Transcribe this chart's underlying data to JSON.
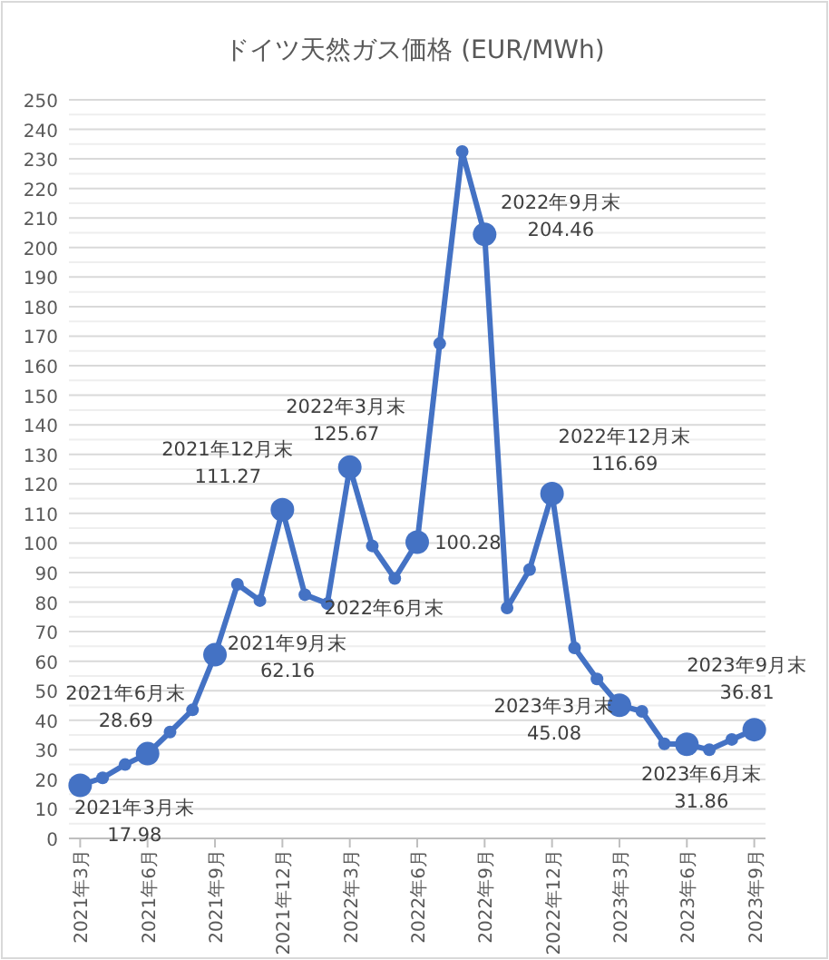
{
  "chart_data": {
    "type": "line",
    "title": "ドイツ天然ガス価格 (EUR/MWh)",
    "categories": [
      "2021年3月",
      null,
      null,
      "2021年6月",
      null,
      null,
      "2021年9月",
      null,
      null,
      "2021年12月",
      null,
      null,
      "2022年3月",
      null,
      null,
      "2022年6月",
      null,
      null,
      "2022年9月",
      null,
      null,
      "2022年12月",
      null,
      null,
      "2023年3月",
      null,
      null,
      "2023年6月",
      null,
      null,
      "2023年9月"
    ],
    "series": [
      {
        "color": "#4472c4",
        "values": [
          17.98,
          20.5,
          25,
          28.69,
          36,
          43.5,
          62.16,
          86,
          80.5,
          111.27,
          82.5,
          79.5,
          125.67,
          99,
          88,
          100.28,
          167.5,
          232.5,
          204.46,
          78,
          91,
          116.69,
          64.5,
          54,
          45.08,
          43,
          32,
          31.86,
          30,
          33.5,
          36.81
        ],
        "value_labels": [
          "17.98",
          null,
          null,
          "28.69",
          null,
          null,
          "62.16",
          null,
          null,
          "111.27",
          null,
          null,
          "125.67",
          null,
          null,
          "100.28",
          null,
          null,
          "204.46",
          null,
          null,
          "116.69",
          null,
          null,
          "45.08",
          null,
          null,
          "31.86",
          null,
          null,
          "36.81"
        ]
      }
    ],
    "annotations": [
      "2021年3月末",
      "2021年6月末",
      "2021年9月末",
      "2021年12月末",
      "2022年3月末",
      "2022年6月末",
      "2022年9月末",
      "2022年12月末",
      "2023年3月末",
      "2023年6月末",
      "2023年9月末"
    ],
    "ylim": [
      0,
      250
    ],
    "yticks": [
      0,
      {
        "value": 5,
        "label": null
      },
      10,
      {
        "value": 15,
        "label": null
      },
      20,
      {
        "value": 25,
        "label": null
      },
      30,
      {
        "value": 35,
        "label": null
      },
      40,
      {
        "value": 45,
        "label": null
      },
      50,
      {
        "value": 55,
        "label": null
      },
      60,
      {
        "value": 65,
        "label": null
      },
      70,
      {
        "value": 75,
        "label": null
      },
      80,
      {
        "value": 85,
        "label": null
      },
      90,
      {
        "value": 95,
        "label": null
      },
      100,
      {
        "value": 105,
        "label": null
      },
      110,
      {
        "value": 115,
        "label": null
      },
      120,
      {
        "value": 125,
        "label": null
      },
      130,
      {
        "value": 135,
        "label": null
      },
      140,
      {
        "value": 145,
        "label": null
      },
      150,
      {
        "value": 155,
        "label": null
      },
      160,
      {
        "value": 165,
        "label": null
      },
      170,
      {
        "value": 175,
        "label": null
      },
      180,
      {
        "value": 185,
        "label": null
      },
      190,
      {
        "value": 195,
        "label": null
      },
      200,
      {
        "value": 205,
        "label": null
      },
      210,
      {
        "value": 215,
        "label": null
      },
      220,
      {
        "value": 225,
        "label": null
      },
      230,
      {
        "value": 235,
        "label": null
      },
      240,
      {
        "value": 245,
        "label": null
      },
      250
    ],
    "grid": "y",
    "marker": "circle",
    "line_style": "solid"
  }
}
